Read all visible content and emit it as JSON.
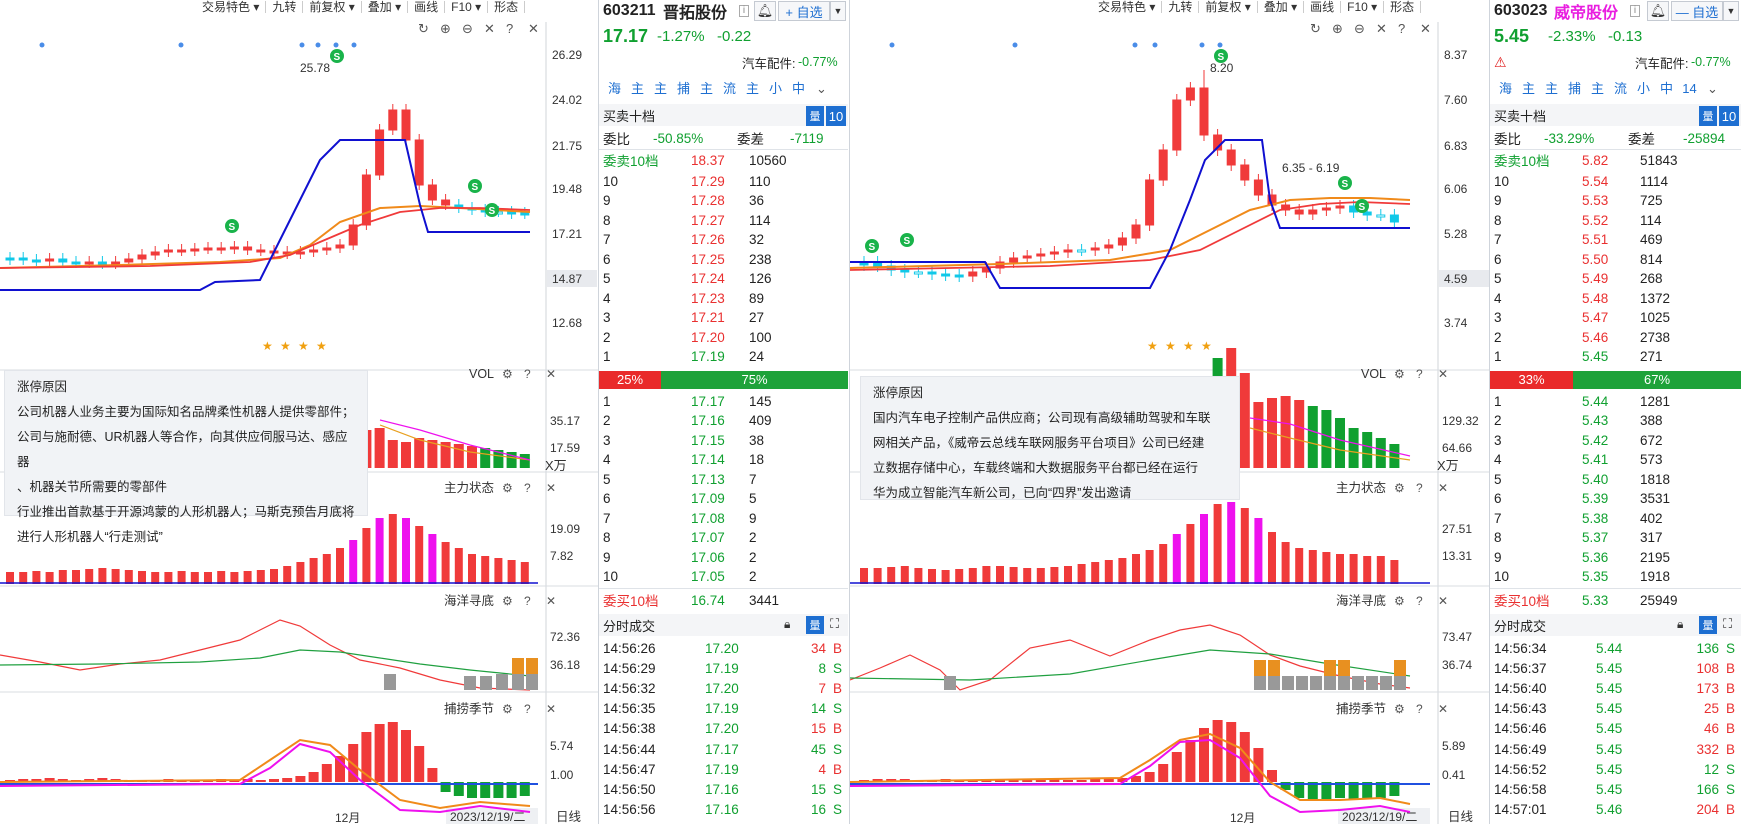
{
  "left": {
    "toolbar": [
      "交易特色 ▾",
      "九转",
      "前复权 ▾",
      "叠加 ▾",
      "画线",
      "F10 ▾",
      "形态"
    ],
    "chart_labels": {
      "high_label": "25.78",
      "axis_main": [
        "26.29",
        "24.02",
        "21.75",
        "19.48",
        "17.21",
        "14.87",
        "12.68"
      ],
      "vol_title": "VOL",
      "vol_axis": [
        "35.17",
        "17.59",
        "X万"
      ],
      "zl_title": "主力状态",
      "zl_axis": [
        "19.09",
        "7.82"
      ],
      "hy_title": "海洋寻底",
      "hy_axis": [
        "72.36",
        "36.18"
      ],
      "bl_title": "捕捞季节",
      "bl_axis": [
        "5.74",
        "1.00"
      ],
      "month": "12月",
      "date": "2023/12/19/二",
      "period": "日线"
    },
    "reason": {
      "title": "涨停原因",
      "lines": [
        "公司机器人业务主要为国际知名品牌柔性机器人提供零部件；",
        "公司与施耐德、UR机器人等合作，向其供应伺服马达、感应器",
        "、机器关节所需要的零部件",
        "行业推出首款基于开源鸿蒙的人形机器人；马斯克预告月底将",
        "进行人形机器人“行走测试”"
      ]
    }
  },
  "left_quote": {
    "code": "603211",
    "name": "晋拓股份",
    "watch": "+ 自选",
    "price": "17.17",
    "change_pct": "-1.27%",
    "change": "-0.22",
    "sector": "汽车配件:",
    "sector_pct": "-0.77%",
    "tabs": [
      "海",
      "主",
      "主",
      "捕",
      "主",
      "流",
      "主",
      "小",
      "中"
    ],
    "book_title": "买卖十档",
    "book_btn": "10",
    "weibi_label": "委比",
    "weibi": "-50.85%",
    "weicha_label": "委差",
    "weicha": "-7119",
    "ask_label": "委卖10档",
    "ask_total_price": "18.37",
    "ask_total_vol": "10560",
    "asks": [
      [
        "10",
        "17.29",
        "110"
      ],
      [
        "9",
        "17.28",
        "36"
      ],
      [
        "8",
        "17.27",
        "114"
      ],
      [
        "7",
        "17.26",
        "32"
      ],
      [
        "6",
        "17.25",
        "238"
      ],
      [
        "5",
        "17.24",
        "126"
      ],
      [
        "4",
        "17.23",
        "89"
      ],
      [
        "3",
        "17.21",
        "27"
      ],
      [
        "2",
        "17.20",
        "100"
      ],
      [
        "1",
        "17.19",
        "24"
      ]
    ],
    "ratio_buy": "25%",
    "ratio_sell": "75%",
    "ratio_buy_frac": 0.25,
    "bids": [
      [
        "1",
        "17.17",
        "145"
      ],
      [
        "2",
        "17.16",
        "409"
      ],
      [
        "3",
        "17.15",
        "38"
      ],
      [
        "4",
        "17.14",
        "18"
      ],
      [
        "5",
        "17.13",
        "7"
      ],
      [
        "6",
        "17.09",
        "5"
      ],
      [
        "7",
        "17.08",
        "9"
      ],
      [
        "8",
        "17.07",
        "2"
      ],
      [
        "9",
        "17.06",
        "2"
      ],
      [
        "10",
        "17.05",
        "2"
      ]
    ],
    "bid_label": "委买10档",
    "bid_total_price": "16.74",
    "bid_total_vol": "3441",
    "ticks_title": "分时成交",
    "ticks": [
      [
        "14:56:26",
        "17.20",
        "34",
        "B"
      ],
      [
        "14:56:29",
        "17.19",
        "8",
        "S"
      ],
      [
        "14:56:32",
        "17.20",
        "7",
        "B"
      ],
      [
        "14:56:35",
        "17.19",
        "14",
        "S"
      ],
      [
        "14:56:38",
        "17.20",
        "15",
        "B"
      ],
      [
        "14:56:44",
        "17.17",
        "45",
        "S"
      ],
      [
        "14:56:47",
        "17.19",
        "4",
        "B"
      ],
      [
        "14:56:50",
        "17.16",
        "15",
        "S"
      ],
      [
        "14:56:56",
        "17.16",
        "16",
        "S"
      ]
    ]
  },
  "right": {
    "toolbar": [
      "交易特色 ▾",
      "九转",
      "前复权 ▾",
      "叠加 ▾",
      "画线",
      "F10 ▾",
      "形态"
    ],
    "chart_labels": {
      "high_label": "8.20",
      "range_label": "6.35 - 6.19",
      "axis_main": [
        "8.37",
        "7.60",
        "6.83",
        "6.06",
        "5.28",
        "4.59",
        "3.74"
      ],
      "vol_title": "VOL",
      "vol_axis": [
        "129.32",
        "64.66",
        "X万"
      ],
      "zl_title": "主力状态",
      "zl_axis": [
        "27.51",
        "13.31"
      ],
      "hy_title": "海洋寻底",
      "hy_axis": [
        "73.47",
        "36.74"
      ],
      "bl_title": "捕捞季节",
      "bl_axis": [
        "5.89",
        "0.41"
      ],
      "month": "12月",
      "date": "2023/12/19/二",
      "period": "日线"
    },
    "reason": {
      "title": "涨停原因",
      "lines": [
        "国内汽车电子控制产品供应商；公司现有高级辅助驾驶和车联",
        "网相关产品，《威帝云总线车联网服务平台项目》公司已经建",
        "立数据存储中心，车载终端和大数据服务平台都已经在运行",
        "华为成立智能汽车新公司，已向“四界”发出邀请"
      ]
    }
  },
  "right_quote": {
    "code": "603023",
    "name": "威帝股份",
    "watch": "— 自选",
    "price": "5.45",
    "change_pct": "-2.33%",
    "change": "-0.13",
    "sector": "汽车配件:",
    "sector_pct": "-0.77%",
    "tabs": [
      "海",
      "主",
      "主",
      "捕",
      "主",
      "流",
      "小",
      "中",
      "14"
    ],
    "book_title": "买卖十档",
    "book_btn": "10",
    "weibi_label": "委比",
    "weibi": "-33.29%",
    "weicha_label": "委差",
    "weicha": "-25894",
    "ask_label": "委卖10档",
    "ask_total_price": "5.82",
    "ask_total_vol": "51843",
    "asks": [
      [
        "10",
        "5.54",
        "1114"
      ],
      [
        "9",
        "5.53",
        "725"
      ],
      [
        "8",
        "5.52",
        "114"
      ],
      [
        "7",
        "5.51",
        "469"
      ],
      [
        "6",
        "5.50",
        "814"
      ],
      [
        "5",
        "5.49",
        "268"
      ],
      [
        "4",
        "5.48",
        "1372"
      ],
      [
        "3",
        "5.47",
        "1025"
      ],
      [
        "2",
        "5.46",
        "2738"
      ],
      [
        "1",
        "5.45",
        "271"
      ]
    ],
    "ratio_buy": "33%",
    "ratio_sell": "67%",
    "ratio_buy_frac": 0.33,
    "bids": [
      [
        "1",
        "5.44",
        "1281"
      ],
      [
        "2",
        "5.43",
        "388"
      ],
      [
        "3",
        "5.42",
        "672"
      ],
      [
        "4",
        "5.41",
        "573"
      ],
      [
        "5",
        "5.40",
        "1818"
      ],
      [
        "6",
        "5.39",
        "3531"
      ],
      [
        "7",
        "5.38",
        "402"
      ],
      [
        "8",
        "5.37",
        "317"
      ],
      [
        "9",
        "5.36",
        "2195"
      ],
      [
        "10",
        "5.35",
        "1918"
      ]
    ],
    "bid_label": "委买10档",
    "bid_total_price": "5.33",
    "bid_total_vol": "25949",
    "ticks_title": "分时成交",
    "ticks": [
      [
        "14:56:34",
        "5.44",
        "136",
        "S"
      ],
      [
        "14:56:37",
        "5.45",
        "108",
        "B"
      ],
      [
        "14:56:40",
        "5.45",
        "173",
        "B"
      ],
      [
        "14:56:43",
        "5.45",
        "25",
        "B"
      ],
      [
        "14:56:46",
        "5.45",
        "46",
        "B"
      ],
      [
        "14:56:49",
        "5.45",
        "332",
        "B"
      ],
      [
        "14:56:52",
        "5.45",
        "12",
        "S"
      ],
      [
        "14:56:58",
        "5.45",
        "166",
        "S"
      ],
      [
        "14:57:01",
        "5.46",
        "204",
        "B"
      ]
    ]
  },
  "colors": {
    "up": "#f03a3a",
    "down": "#10a030",
    "accent": "#1e6fd1",
    "magenta": "#ee11ee",
    "ma_orange": "#f08a1a",
    "ma_blue": "#1010d0"
  }
}
